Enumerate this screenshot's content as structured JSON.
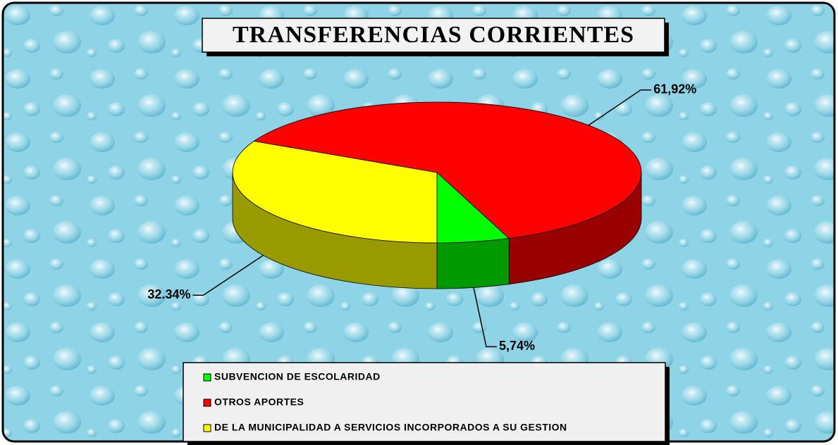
{
  "chart_data": {
    "type": "pie",
    "title": "TRANSFERENCIAS CORRIENTES",
    "categories": [
      "SUBVENCION DE ESCOLARIDAD",
      "OTROS APORTES",
      "DE LA MUNICIPALIDAD A SERVICIOS INCORPORADOS A SU GESTION"
    ],
    "values": [
      5.74,
      61.92,
      32.34
    ],
    "value_labels": [
      "5,74%",
      "61,92%",
      "32.34%"
    ],
    "colors": [
      "#00ff00",
      "#ff0000",
      "#ffff00"
    ]
  }
}
